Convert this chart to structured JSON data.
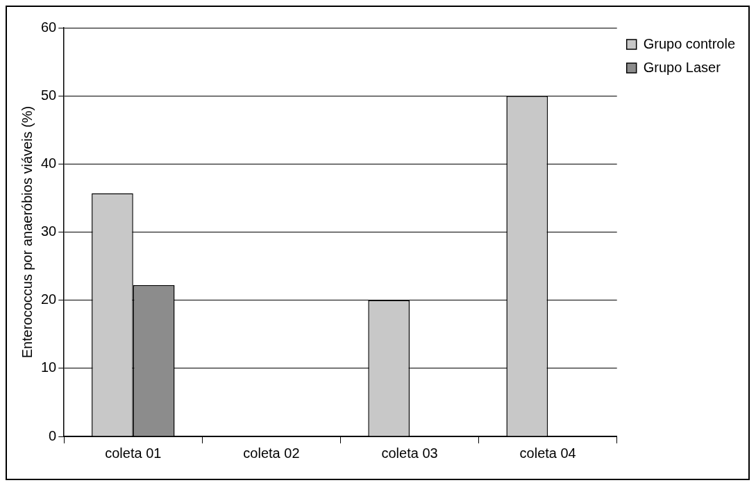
{
  "chart_data": {
    "type": "bar",
    "ylabel": "Enterococcus por anaeróbios viáveis (%)",
    "categories": [
      "coleta 01",
      "coleta 02",
      "coleta 03",
      "coleta 04"
    ],
    "series": [
      {
        "name": "Grupo controle",
        "color": "#c8c8c8",
        "values": [
          35.7,
          0,
          20,
          50
        ]
      },
      {
        "name": "Grupo Laser",
        "color": "#8c8c8c",
        "values": [
          22.2,
          0,
          0,
          0
        ]
      }
    ],
    "ylim": [
      0,
      60
    ],
    "yticks": [
      0,
      10,
      20,
      30,
      40,
      50,
      60
    ],
    "grid": "y",
    "legend": "top right"
  }
}
